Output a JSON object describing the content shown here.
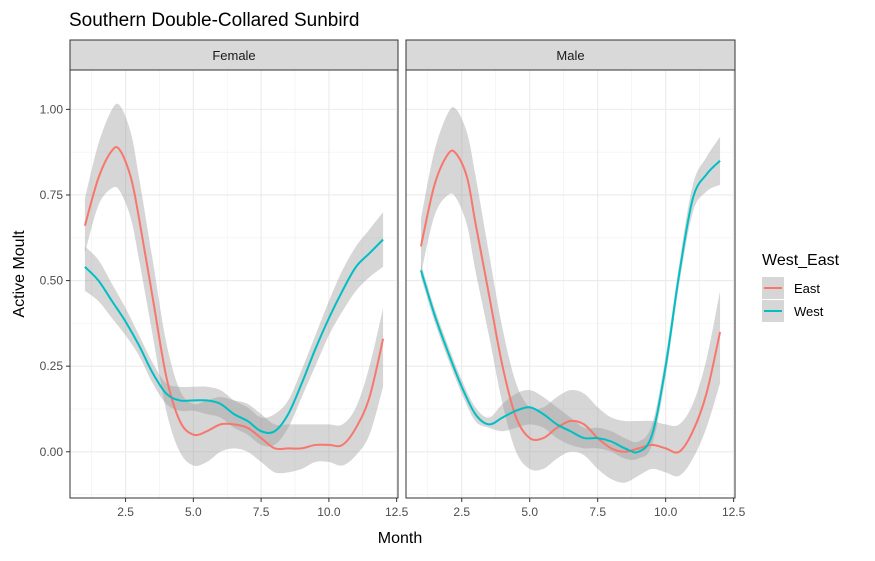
{
  "chart_data": {
    "type": "line",
    "title": "Southern Double-Collared Sunbird",
    "xlabel": "Month",
    "ylabel": "Active Moult",
    "xlim": [
      0.45,
      12.55
    ],
    "ylim": [
      -0.135,
      1.115
    ],
    "x_ticks": [
      2.5,
      5.0,
      7.5,
      10.0,
      12.5
    ],
    "x_tick_labels": [
      "2.5",
      "5.0",
      "7.5",
      "10.0",
      "12.5"
    ],
    "y_ticks": [
      0.0,
      0.25,
      0.5,
      0.75,
      1.0
    ],
    "y_tick_labels": [
      "0.00",
      "0.25",
      "0.50",
      "0.75",
      "1.00"
    ],
    "grid": true,
    "legend": {
      "title": "West_East",
      "position": "right",
      "entries": [
        {
          "label": "East",
          "color": "#F8766D"
        },
        {
          "label": "West",
          "color": "#00BFC4"
        }
      ]
    },
    "band_color": "#999999",
    "panels": [
      {
        "label": "Female",
        "series": [
          {
            "name": "East",
            "color": "#F8766D",
            "x": [
              1,
              1.5,
              2,
              2.3,
              2.7,
              3,
              3.5,
              4,
              4.5,
              5,
              5.5,
              6,
              6.5,
              7,
              7.5,
              8,
              8.5,
              9,
              9.5,
              10,
              10.5,
              11,
              11.5,
              12
            ],
            "y": [
              0.66,
              0.8,
              0.88,
              0.88,
              0.8,
              0.68,
              0.45,
              0.22,
              0.09,
              0.05,
              0.06,
              0.08,
              0.08,
              0.07,
              0.04,
              0.01,
              0.01,
              0.01,
              0.02,
              0.02,
              0.02,
              0.07,
              0.16,
              0.33
            ],
            "lower": [
              0.58,
              0.72,
              0.77,
              0.76,
              0.68,
              0.56,
              0.34,
              0.12,
              0.0,
              -0.04,
              -0.03,
              0.0,
              0.01,
              0.0,
              -0.03,
              -0.06,
              -0.06,
              -0.05,
              -0.03,
              -0.03,
              -0.04,
              -0.01,
              0.05,
              0.19
            ],
            "upper": [
              0.74,
              0.9,
              1.0,
              1.01,
              0.93,
              0.8,
              0.56,
              0.32,
              0.18,
              0.14,
              0.15,
              0.16,
              0.15,
              0.14,
              0.11,
              0.08,
              0.08,
              0.08,
              0.08,
              0.08,
              0.08,
              0.13,
              0.25,
              0.42
            ]
          },
          {
            "name": "West",
            "color": "#00BFC4",
            "x": [
              1,
              1.5,
              2,
              2.5,
              3,
              3.5,
              4,
              4.5,
              5,
              5.5,
              6,
              6.5,
              7,
              7.5,
              8,
              8.5,
              9,
              9.5,
              10,
              10.5,
              11,
              11.5,
              12
            ],
            "y": [
              0.54,
              0.5,
              0.44,
              0.38,
              0.31,
              0.23,
              0.17,
              0.15,
              0.15,
              0.15,
              0.14,
              0.11,
              0.09,
              0.06,
              0.06,
              0.11,
              0.2,
              0.3,
              0.39,
              0.47,
              0.54,
              0.58,
              0.62
            ],
            "lower": [
              0.47,
              0.44,
              0.39,
              0.34,
              0.28,
              0.2,
              0.14,
              0.12,
              0.12,
              0.11,
              0.1,
              0.07,
              0.05,
              0.02,
              0.02,
              0.07,
              0.16,
              0.25,
              0.34,
              0.41,
              0.47,
              0.51,
              0.54
            ],
            "upper": [
              0.6,
              0.56,
              0.49,
              0.42,
              0.34,
              0.26,
              0.2,
              0.19,
              0.19,
              0.19,
              0.18,
              0.15,
              0.13,
              0.1,
              0.11,
              0.15,
              0.24,
              0.34,
              0.44,
              0.53,
              0.6,
              0.65,
              0.7
            ]
          }
        ]
      },
      {
        "label": "Male",
        "series": [
          {
            "name": "East",
            "color": "#F8766D",
            "x": [
              1,
              1.5,
              2,
              2.3,
              2.7,
              3,
              3.5,
              4,
              4.5,
              5,
              5.5,
              6,
              6.5,
              7,
              7.5,
              8,
              8.5,
              9,
              9.5,
              10,
              10.5,
              11,
              11.5,
              12
            ],
            "y": [
              0.6,
              0.78,
              0.87,
              0.87,
              0.8,
              0.67,
              0.46,
              0.25,
              0.1,
              0.04,
              0.04,
              0.07,
              0.09,
              0.08,
              0.04,
              0.01,
              0.0,
              0.01,
              0.02,
              0.01,
              0.0,
              0.06,
              0.17,
              0.35
            ],
            "lower": [
              0.52,
              0.69,
              0.75,
              0.74,
              0.66,
              0.53,
              0.34,
              0.14,
              0.0,
              -0.05,
              -0.05,
              -0.02,
              0.0,
              -0.01,
              -0.05,
              -0.08,
              -0.09,
              -0.07,
              -0.05,
              -0.06,
              -0.07,
              -0.02,
              0.07,
              0.2
            ],
            "upper": [
              0.68,
              0.88,
              0.99,
              1.0,
              0.93,
              0.81,
              0.58,
              0.36,
              0.2,
              0.13,
              0.13,
              0.16,
              0.18,
              0.17,
              0.13,
              0.1,
              0.09,
              0.09,
              0.09,
              0.08,
              0.08,
              0.14,
              0.27,
              0.47
            ]
          },
          {
            "name": "West",
            "color": "#00BFC4",
            "x": [
              1,
              1.5,
              2,
              2.5,
              3,
              3.5,
              4,
              4.5,
              5,
              5.5,
              6,
              6.5,
              7,
              7.5,
              8,
              8.5,
              9,
              9.5,
              10,
              10.5,
              11,
              11.5,
              12
            ],
            "y": [
              0.53,
              0.4,
              0.29,
              0.19,
              0.11,
              0.08,
              0.1,
              0.12,
              0.13,
              0.11,
              0.08,
              0.06,
              0.04,
              0.04,
              0.03,
              0.01,
              0.0,
              0.05,
              0.25,
              0.52,
              0.74,
              0.81,
              0.85
            ],
            "lower": [
              0.51,
              0.38,
              0.27,
              0.17,
              0.09,
              0.07,
              0.06,
              0.07,
              0.08,
              0.07,
              0.04,
              0.02,
              0.01,
              0.01,
              0.0,
              -0.02,
              -0.02,
              0.02,
              0.22,
              0.49,
              0.7,
              0.76,
              0.78
            ],
            "upper": [
              0.55,
              0.42,
              0.31,
              0.21,
              0.13,
              0.1,
              0.14,
              0.17,
              0.18,
              0.16,
              0.13,
              0.1,
              0.07,
              0.07,
              0.06,
              0.04,
              0.03,
              0.08,
              0.28,
              0.55,
              0.78,
              0.86,
              0.92
            ]
          }
        ]
      }
    ]
  }
}
